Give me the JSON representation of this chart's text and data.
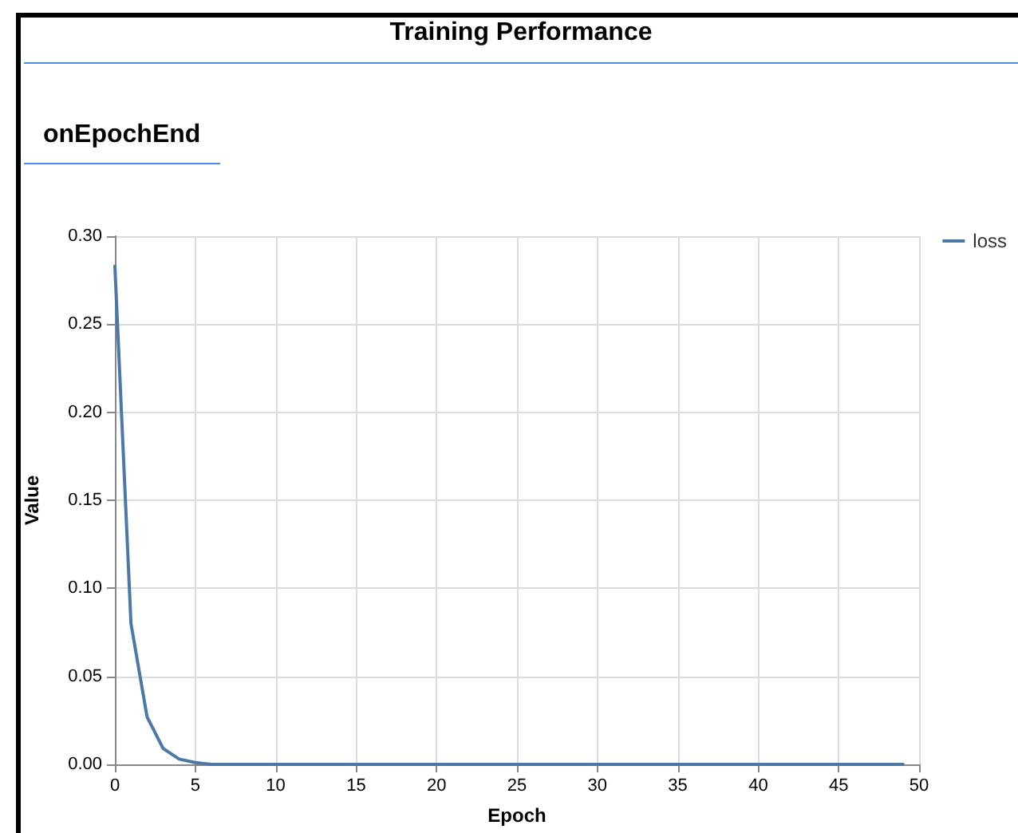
{
  "chart_data": {
    "type": "line",
    "title": "Training Performance",
    "subtitle": "onEpochEnd",
    "xlabel": "Epoch",
    "ylabel": "Value",
    "x": [
      0,
      1,
      2,
      3,
      4,
      5,
      6,
      7,
      8,
      9,
      10,
      11,
      12,
      13,
      14,
      15,
      16,
      17,
      18,
      19,
      20,
      21,
      22,
      23,
      24,
      25,
      26,
      27,
      28,
      29,
      30,
      31,
      32,
      33,
      34,
      35,
      36,
      37,
      38,
      39,
      40,
      41,
      42,
      43,
      44,
      45,
      46,
      47,
      48,
      49
    ],
    "series": [
      {
        "name": "loss",
        "color": "#4c78a8",
        "values": [
          0.283,
          0.08,
          0.027,
          0.009,
          0.003,
          0.001,
          0,
          0,
          0,
          0,
          0,
          0,
          0,
          0,
          0,
          0,
          0,
          0,
          0,
          0,
          0,
          0,
          0,
          0,
          0,
          0,
          0,
          0,
          0,
          0,
          0,
          0,
          0,
          0,
          0,
          0,
          0,
          0,
          0,
          0,
          0,
          0,
          0,
          0,
          0,
          0,
          0,
          0,
          0,
          0
        ]
      }
    ],
    "xlim": [
      0,
      50
    ],
    "xticks": [
      0,
      5,
      10,
      15,
      20,
      25,
      30,
      35,
      40,
      45,
      50
    ],
    "ylim": [
      0,
      0.3
    ],
    "yticks": [
      {
        "value": 0,
        "label": "0.00"
      },
      {
        "value": 0.05,
        "label": "0.05"
      },
      {
        "value": 0.1,
        "label": "0.10"
      },
      {
        "value": 0.15,
        "label": "0.15"
      },
      {
        "value": 0.2,
        "label": "0.20"
      },
      {
        "value": 0.25,
        "label": "0.25"
      },
      {
        "value": 0.3,
        "label": "0.30"
      }
    ],
    "grid": true,
    "legend": "top right",
    "marker": "none",
    "line_style": "solid"
  }
}
